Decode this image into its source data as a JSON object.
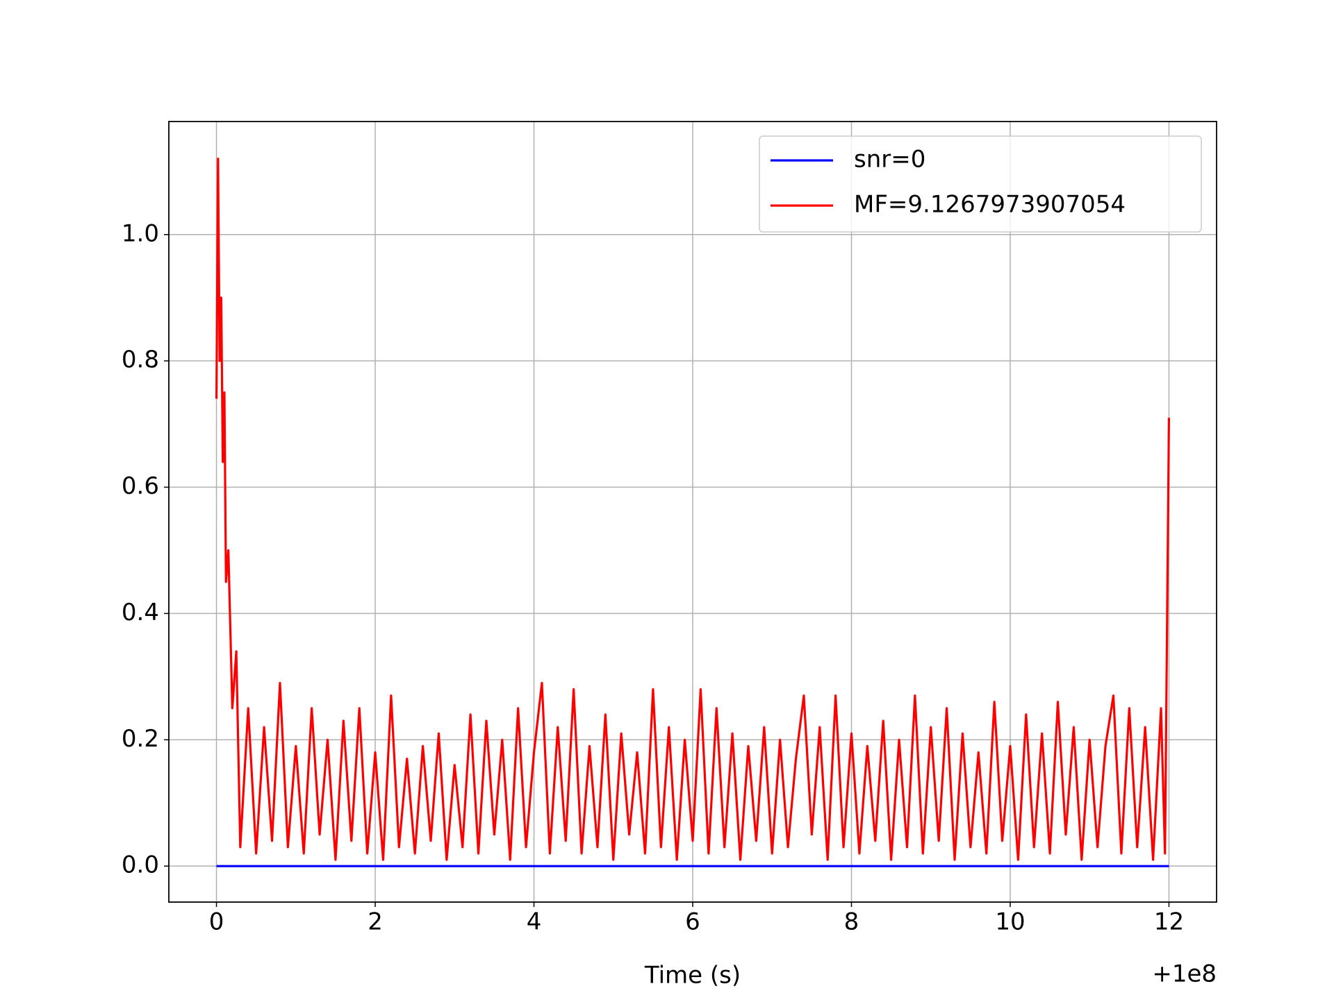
{
  "chart_data": {
    "type": "line",
    "xlabel": "Time (s)",
    "x_offset_label": "+1e8",
    "xlim": [
      -0.6,
      12.6
    ],
    "xticks": [
      0,
      2,
      4,
      6,
      8,
      10,
      12
    ],
    "ylim": [
      -0.057,
      1.179
    ],
    "yticks": [
      {
        "value": 0,
        "label": "0.0"
      },
      {
        "value": 0.2,
        "label": "0.2"
      },
      {
        "value": 0.4,
        "label": "0.4"
      },
      {
        "value": 0.6,
        "label": "0.6"
      },
      {
        "value": 0.8,
        "label": "0.8"
      },
      {
        "value": 1,
        "label": "1.0"
      }
    ],
    "grid": true,
    "legend": "upper right",
    "series": [
      {
        "name": "snr=0",
        "color": "#0000ff",
        "x": [
          0,
          12
        ],
        "values": [
          0,
          0
        ]
      },
      {
        "name": "MF=9.1267973907054",
        "color": "#ff0000",
        "x": [
          0,
          0.02,
          0.04,
          0.06,
          0.08,
          0.1,
          0.12,
          0.15,
          0.2,
          0.25,
          0.3,
          0.4,
          0.5,
          0.6,
          0.7,
          0.8,
          0.9,
          1.0,
          1.1,
          1.2,
          1.3,
          1.4,
          1.5,
          1.6,
          1.7,
          1.8,
          1.9,
          2.0,
          2.1,
          2.2,
          2.3,
          2.4,
          2.5,
          2.6,
          2.7,
          2.8,
          2.9,
          3.0,
          3.1,
          3.2,
          3.3,
          3.4,
          3.5,
          3.6,
          3.7,
          3.8,
          3.9,
          4.0,
          4.1,
          4.2,
          4.3,
          4.4,
          4.5,
          4.6,
          4.7,
          4.8,
          4.9,
          5.0,
          5.1,
          5.2,
          5.3,
          5.4,
          5.5,
          5.6,
          5.7,
          5.8,
          5.9,
          6.0,
          6.1,
          6.2,
          6.3,
          6.4,
          6.5,
          6.6,
          6.7,
          6.8,
          6.9,
          7.0,
          7.1,
          7.2,
          7.3,
          7.4,
          7.5,
          7.6,
          7.7,
          7.8,
          7.9,
          8.0,
          8.1,
          8.2,
          8.3,
          8.4,
          8.5,
          8.6,
          8.7,
          8.8,
          8.9,
          9.0,
          9.1,
          9.2,
          9.3,
          9.4,
          9.5,
          9.6,
          9.7,
          9.8,
          9.9,
          10.0,
          10.1,
          10.2,
          10.3,
          10.4,
          10.5,
          10.6,
          10.7,
          10.8,
          10.9,
          11.0,
          11.1,
          11.2,
          11.3,
          11.4,
          11.5,
          11.6,
          11.7,
          11.8,
          11.9,
          11.95,
          12.0
        ],
        "values": [
          0.74,
          1.12,
          0.8,
          0.9,
          0.64,
          0.75,
          0.45,
          0.5,
          0.25,
          0.34,
          0.03,
          0.25,
          0.02,
          0.22,
          0.04,
          0.29,
          0.03,
          0.19,
          0.02,
          0.25,
          0.05,
          0.2,
          0.01,
          0.23,
          0.04,
          0.25,
          0.02,
          0.18,
          0.01,
          0.27,
          0.03,
          0.17,
          0.02,
          0.19,
          0.04,
          0.21,
          0.01,
          0.16,
          0.03,
          0.24,
          0.02,
          0.23,
          0.05,
          0.2,
          0.01,
          0.25,
          0.03,
          0.18,
          0.29,
          0.02,
          0.22,
          0.04,
          0.28,
          0.02,
          0.19,
          0.03,
          0.24,
          0.01,
          0.21,
          0.05,
          0.18,
          0.02,
          0.28,
          0.03,
          0.22,
          0.01,
          0.2,
          0.04,
          0.28,
          0.02,
          0.25,
          0.03,
          0.21,
          0.01,
          0.19,
          0.04,
          0.22,
          0.02,
          0.2,
          0.03,
          0.17,
          0.27,
          0.05,
          0.22,
          0.01,
          0.27,
          0.03,
          0.21,
          0.02,
          0.19,
          0.04,
          0.23,
          0.01,
          0.2,
          0.03,
          0.27,
          0.02,
          0.22,
          0.04,
          0.25,
          0.01,
          0.21,
          0.03,
          0.18,
          0.02,
          0.26,
          0.04,
          0.19,
          0.01,
          0.24,
          0.03,
          0.21,
          0.02,
          0.26,
          0.05,
          0.22,
          0.01,
          0.2,
          0.03,
          0.19,
          0.27,
          0.02,
          0.25,
          0.03,
          0.22,
          0.01,
          0.25,
          0.02,
          0.71
        ]
      }
    ]
  }
}
